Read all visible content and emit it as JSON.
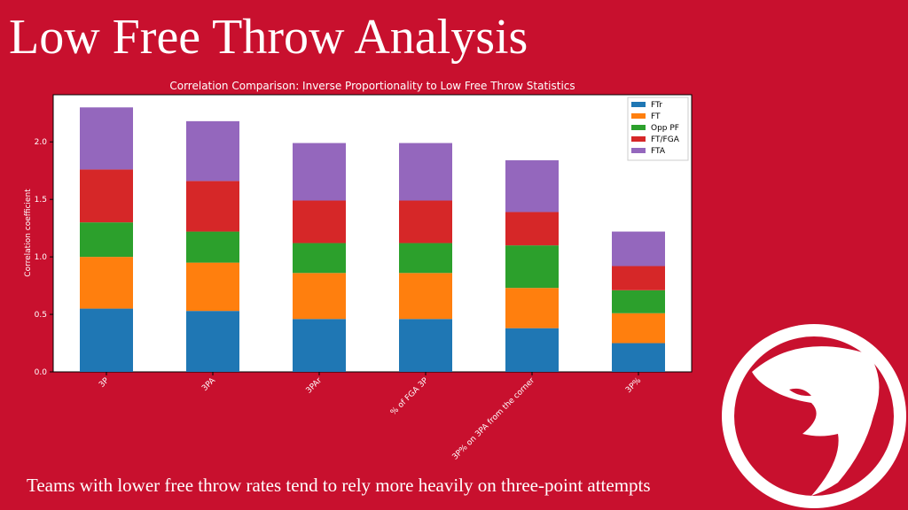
{
  "slide": {
    "title": "Low Free Throw Analysis",
    "caption": "Teams with lower free throw rates tend to rely more heavily on three-point attempts"
  },
  "chart_data": {
    "type": "stacked-bar",
    "title": "Correlation Comparison: Inverse Proportionality to Low Free Throw Statistics",
    "y_label": "Correlation coefficient",
    "categories": [
      "3P",
      "3PA",
      "3PAr",
      "% of FGA 3P",
      "3P% on 3PA from the corner",
      "3P%"
    ],
    "series": [
      {
        "name": "FTr",
        "color": "#1f77b4",
        "values": [
          0.55,
          0.53,
          0.46,
          0.46,
          0.38,
          0.25
        ]
      },
      {
        "name": "FT",
        "color": "#ff7f0e",
        "values": [
          0.45,
          0.42,
          0.4,
          0.4,
          0.35,
          0.26
        ]
      },
      {
        "name": "Opp PF",
        "color": "#2ca02c",
        "values": [
          0.3,
          0.27,
          0.26,
          0.26,
          0.37,
          0.2
        ]
      },
      {
        "name": "FT/FGA",
        "color": "#d62728",
        "values": [
          0.46,
          0.44,
          0.37,
          0.37,
          0.29,
          0.21
        ]
      },
      {
        "name": "FTA",
        "color": "#9467bd",
        "values": [
          0.54,
          0.52,
          0.5,
          0.5,
          0.45,
          0.3
        ]
      }
    ],
    "ylim": [
      0,
      2.41
    ],
    "yticks": [
      {
        "value": 0,
        "label": "0.0"
      },
      {
        "value": 0.5,
        "label": "0.5"
      },
      {
        "value": 1,
        "label": "1.0"
      },
      {
        "value": 1.5,
        "label": "1.5"
      },
      {
        "value": 2,
        "label": "2.0"
      }
    ],
    "legend": "upper-right"
  }
}
